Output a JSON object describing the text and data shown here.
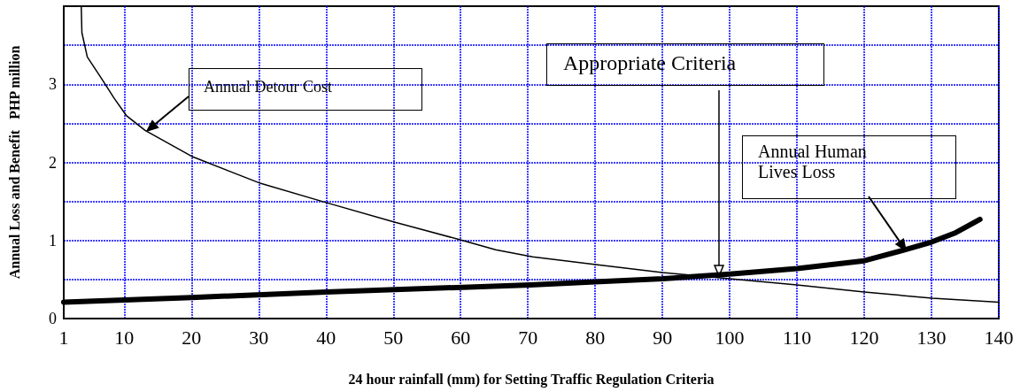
{
  "chart_data": {
    "type": "line",
    "xlabel": "24 hour rainfall (mm) for Setting Traffic Regulation Criteria",
    "ylabel": "Annual Loss and Benefit   PHP million",
    "xlim": [
      1,
      140
    ],
    "xticks": [
      1,
      10,
      20,
      30,
      40,
      50,
      60,
      70,
      80,
      90,
      100,
      110,
      120,
      130,
      140
    ],
    "ylim": [
      0,
      4
    ],
    "yticks": [
      0,
      {
        "value": 0.5,
        "label": null
      },
      1,
      {
        "value": 1.5,
        "label": null
      },
      2,
      {
        "value": 2.5,
        "label": null
      },
      3,
      {
        "value": 3.5,
        "label": null
      }
    ],
    "grid": true,
    "marker": "none",
    "line_style": "solid",
    "series": [
      {
        "color": "#000000",
        "x": [
          3.6,
          3.7,
          4.5,
          6.5,
          8.5,
          10.3,
          13.1,
          20.2,
          30.3,
          40.2,
          50.4,
          60.3,
          65.2,
          70.7,
          80.1,
          90,
          100,
          110,
          120,
          130.1,
          140
        ],
        "values": [
          4.0,
          3.66,
          3.35,
          3.09,
          2.82,
          2.6,
          2.41,
          2.07,
          1.73,
          1.48,
          1.23,
          1.0,
          0.88,
          0.79,
          0.69,
          0.59,
          0.51,
          0.43,
          0.34,
          0.26,
          0.21
        ]
      },
      {
        "color": "#000000",
        "x": [
          1,
          20,
          40,
          70.4,
          80,
          90,
          100,
          110,
          120,
          126,
          130,
          133.6,
          137.2
        ],
        "values": [
          0.21,
          0.27,
          0.34,
          0.43,
          0.47,
          0.51,
          0.57,
          0.64,
          0.74,
          0.88,
          0.98,
          1.1,
          1.27
        ]
      }
    ],
    "annotations": [
      "Annual Detour Cost",
      "Appropriate Criteria",
      "Annual Human Lives Loss"
    ]
  }
}
